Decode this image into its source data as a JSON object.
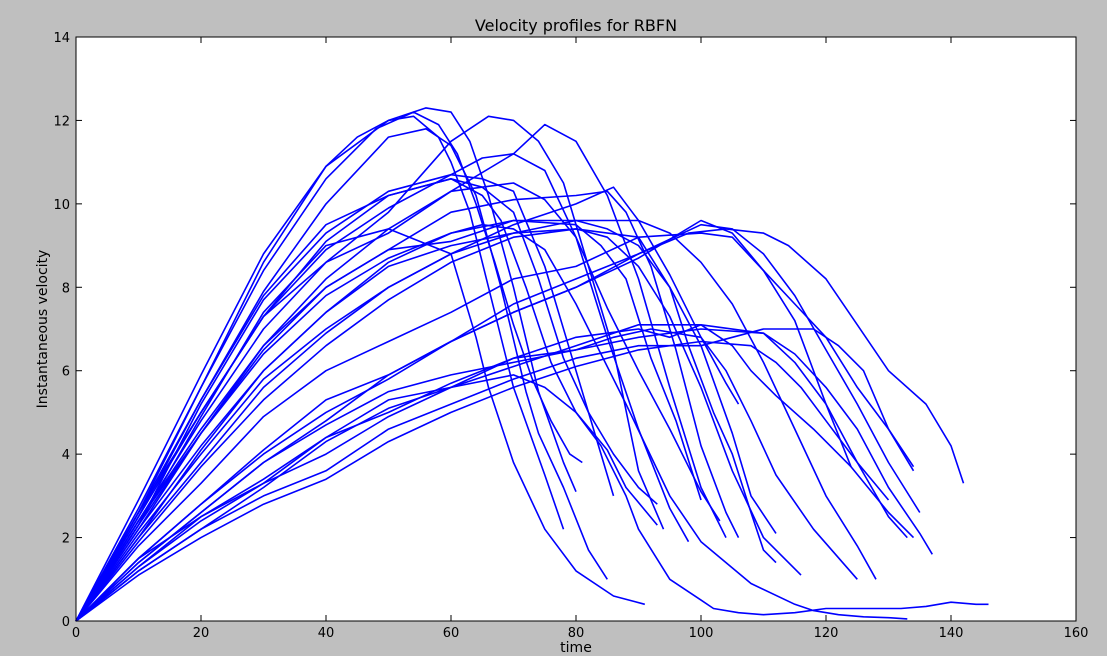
{
  "chart_data": {
    "type": "line",
    "title": "Velocity profiles for RBFN",
    "xlabel": "time",
    "ylabel": "Instantaneous velocity",
    "xlim": [
      0,
      160
    ],
    "ylim": [
      0,
      14
    ],
    "xticks": [
      0,
      20,
      40,
      60,
      80,
      100,
      120,
      140,
      160
    ],
    "yticks": [
      0,
      2,
      4,
      6,
      8,
      10,
      12,
      14
    ],
    "grid": false,
    "legend": "none",
    "line_color": "#0000ff",
    "series": [
      {
        "x": [
          0,
          10,
          20,
          30,
          40,
          45,
          50,
          54,
          58,
          60,
          63,
          66,
          70,
          75,
          78
        ],
        "y": [
          0,
          2.6,
          5.6,
          8.6,
          10.9,
          11.6,
          12.0,
          12.1,
          11.6,
          11.0,
          9.8,
          8.0,
          5.6,
          3.5,
          2.2
        ]
      },
      {
        "x": [
          0,
          10,
          20,
          30,
          40,
          50,
          56,
          60,
          63,
          66,
          70,
          74,
          78,
          80
        ],
        "y": [
          0,
          2.9,
          5.9,
          8.8,
          10.9,
          12.0,
          12.3,
          12.2,
          11.5,
          10.2,
          8.0,
          5.5,
          3.8,
          3.1
        ]
      },
      {
        "x": [
          0,
          10,
          20,
          30,
          40,
          48,
          54,
          58,
          61,
          64,
          67,
          70,
          73,
          76,
          79,
          81
        ],
        "y": [
          0,
          2.7,
          5.6,
          8.4,
          10.6,
          11.8,
          12.2,
          11.9,
          11.2,
          10.0,
          8.6,
          7.1,
          5.8,
          4.8,
          4.0,
          3.8
        ]
      },
      {
        "x": [
          0,
          10,
          20,
          30,
          40,
          50,
          56,
          60,
          64,
          68,
          72,
          74,
          78,
          82,
          85
        ],
        "y": [
          0,
          2.5,
          5.3,
          7.9,
          10.0,
          11.6,
          11.8,
          11.4,
          10.2,
          8.0,
          5.5,
          4.5,
          3.2,
          1.7,
          1.0
        ]
      },
      {
        "x": [
          0,
          10,
          20,
          30,
          40,
          50,
          60,
          64,
          66,
          70,
          75,
          80,
          86,
          91
        ],
        "y": [
          0,
          2.3,
          4.9,
          7.4,
          9.0,
          9.4,
          8.8,
          6.8,
          5.6,
          3.8,
          2.2,
          1.2,
          0.6,
          0.4
        ]
      },
      {
        "x": [
          0,
          10,
          20,
          30,
          40,
          50,
          60,
          65,
          68,
          72,
          76,
          80,
          85,
          88,
          93
        ],
        "y": [
          0,
          2.5,
          5.0,
          7.3,
          9.1,
          10.2,
          10.6,
          10.2,
          9.6,
          8.0,
          6.2,
          5.0,
          4.1,
          3.2,
          2.3
        ]
      },
      {
        "x": [
          0,
          10,
          20,
          30,
          40,
          50,
          60,
          65,
          70,
          74,
          78,
          82,
          86,
          90,
          93
        ],
        "y": [
          0,
          2.6,
          5.3,
          7.8,
          9.5,
          10.2,
          10.6,
          10.4,
          9.8,
          8.2,
          6.3,
          5.0,
          4.0,
          3.2,
          2.8
        ]
      },
      {
        "x": [
          0,
          10,
          20,
          30,
          40,
          50,
          60,
          65,
          70,
          75,
          80,
          84,
          86
        ],
        "y": [
          0,
          2.3,
          5.2,
          7.7,
          9.3,
          10.3,
          10.7,
          10.6,
          10.3,
          8.5,
          6.0,
          4.0,
          3.0
        ]
      },
      {
        "x": [
          0,
          10,
          20,
          30,
          40,
          50,
          60,
          65,
          70,
          75,
          80,
          85,
          90,
          95,
          98
        ],
        "y": [
          0,
          2.6,
          5.0,
          7.3,
          8.9,
          9.9,
          10.7,
          11.1,
          11.2,
          10.8,
          9.2,
          6.8,
          4.6,
          2.7,
          1.9
        ]
      },
      {
        "x": [
          0,
          10,
          20,
          30,
          40,
          50,
          60,
          66,
          70,
          74,
          78,
          82,
          86,
          90,
          94
        ],
        "y": [
          0,
          2.4,
          4.8,
          7.0,
          8.6,
          9.8,
          11.5,
          12.1,
          12.0,
          11.5,
          10.5,
          8.5,
          6.5,
          3.6,
          2.2
        ]
      },
      {
        "x": [
          0,
          10,
          20,
          30,
          40,
          50,
          60,
          70,
          75,
          80,
          85,
          90,
          95,
          100,
          103
        ],
        "y": [
          0,
          2.2,
          4.5,
          6.6,
          8.2,
          9.4,
          10.3,
          10.5,
          10.1,
          9.2,
          7.5,
          6.0,
          4.6,
          3.1,
          2.4
        ]
      },
      {
        "x": [
          0,
          10,
          20,
          30,
          40,
          50,
          60,
          70,
          80,
          85,
          88,
          92,
          96,
          100,
          104,
          106
        ],
        "y": [
          0,
          2.4,
          4.6,
          6.6,
          8.0,
          8.9,
          9.8,
          10.1,
          10.2,
          10.3,
          9.8,
          8.5,
          6.5,
          4.2,
          2.6,
          2.0
        ]
      },
      {
        "x": [
          0,
          10,
          20,
          30,
          40,
          50,
          60,
          70,
          75,
          80,
          85,
          90,
          95,
          100,
          104
        ],
        "y": [
          0,
          2.6,
          5.0,
          7.3,
          8.6,
          9.3,
          10.3,
          11.2,
          11.9,
          11.5,
          10.2,
          8.2,
          5.6,
          3.2,
          2.0
        ]
      },
      {
        "x": [
          0,
          10,
          20,
          30,
          40,
          50,
          60,
          70,
          80,
          84,
          88,
          92,
          96,
          100
        ],
        "y": [
          0,
          2.4,
          4.5,
          6.5,
          8.0,
          8.9,
          9.1,
          9.6,
          9.5,
          9.0,
          8.2,
          6.3,
          4.8,
          2.9
        ]
      },
      {
        "x": [
          0,
          10,
          20,
          30,
          40,
          50,
          60,
          70,
          80,
          85,
          90,
          95,
          100,
          105,
          108,
          112
        ],
        "y": [
          0,
          2.3,
          4.5,
          6.4,
          7.8,
          8.7,
          9.3,
          9.6,
          9.6,
          9.4,
          9.0,
          8.0,
          6.6,
          4.5,
          3.0,
          2.1
        ]
      },
      {
        "x": [
          0,
          10,
          20,
          30,
          40,
          50,
          60,
          65,
          70,
          75,
          80,
          88,
          95,
          100,
          108,
          115,
          118,
          122,
          126,
          130,
          133
        ],
        "y": [
          0,
          2.2,
          4.2,
          6.0,
          7.4,
          8.6,
          9.3,
          9.5,
          9.4,
          8.9,
          7.6,
          5.2,
          3.0,
          1.9,
          0.9,
          0.4,
          0.25,
          0.15,
          0.1,
          0.08,
          0.05
        ]
      },
      {
        "x": [
          0,
          10,
          20,
          30,
          40,
          50,
          60,
          70,
          80,
          85,
          90,
          95,
          100,
          105,
          110,
          116
        ],
        "y": [
          0,
          2.0,
          4.1,
          6.0,
          7.4,
          8.5,
          9.0,
          9.3,
          9.4,
          9.2,
          8.5,
          7.3,
          5.6,
          3.6,
          2.0,
          1.1
        ]
      },
      {
        "x": [
          0,
          10,
          20,
          30,
          40,
          50,
          60,
          70,
          80,
          90,
          95,
          98,
          102,
          105,
          108,
          110,
          112
        ],
        "y": [
          0,
          1.9,
          3.7,
          5.3,
          6.6,
          7.7,
          8.6,
          9.2,
          9.4,
          9.2,
          8.0,
          6.6,
          5.0,
          4.0,
          2.6,
          1.7,
          1.4
        ]
      },
      {
        "x": [
          0,
          10,
          20,
          30,
          40,
          50,
          60,
          70,
          80,
          86,
          90,
          95,
          100,
          104,
          106
        ],
        "y": [
          0,
          2.0,
          3.8,
          5.6,
          6.9,
          8.0,
          8.8,
          9.5,
          10.0,
          10.4,
          9.6,
          8.3,
          6.8,
          5.7,
          5.2
        ]
      },
      {
        "x": [
          0,
          10,
          20,
          30,
          40,
          50,
          60,
          70,
          80,
          90,
          95,
          100,
          105,
          110,
          115,
          120,
          125,
          128
        ],
        "y": [
          0,
          2.1,
          4.0,
          5.8,
          7.0,
          8.0,
          8.8,
          9.3,
          9.6,
          9.6,
          9.3,
          8.6,
          7.6,
          6.2,
          4.6,
          3.0,
          1.8,
          1.0
        ]
      },
      {
        "x": [
          0,
          10,
          20,
          30,
          40,
          50,
          60,
          70,
          80,
          90,
          100,
          105,
          110,
          115,
          120,
          125,
          130,
          134
        ],
        "y": [
          0,
          1.8,
          3.3,
          4.9,
          6.0,
          6.7,
          7.4,
          8.2,
          8.5,
          9.2,
          9.3,
          9.2,
          8.4,
          7.6,
          6.8,
          5.6,
          4.6,
          3.7
        ]
      },
      {
        "x": [
          0,
          10,
          20,
          30,
          40,
          50,
          60,
          70,
          80,
          90,
          100,
          105,
          110,
          115,
          120,
          125,
          130,
          135
        ],
        "y": [
          0,
          1.4,
          2.6,
          3.8,
          4.8,
          5.9,
          6.7,
          7.4,
          8.0,
          8.8,
          9.5,
          9.4,
          8.8,
          7.8,
          6.5,
          5.2,
          3.8,
          2.6
        ]
      },
      {
        "x": [
          0,
          10,
          20,
          30,
          40,
          50,
          60,
          70,
          80,
          90,
          98,
          104,
          110,
          114,
          120,
          125,
          130,
          136,
          140,
          142
        ],
        "y": [
          0,
          1.5,
          2.8,
          4.0,
          5.0,
          5.8,
          6.7,
          7.6,
          8.2,
          8.8,
          9.3,
          9.4,
          9.3,
          9.0,
          8.2,
          7.1,
          6.0,
          5.2,
          4.2,
          3.3
        ]
      },
      {
        "x": [
          0,
          10,
          20,
          30,
          40,
          50,
          60,
          70,
          80,
          90,
          100,
          105,
          110,
          115,
          120,
          124
        ],
        "y": [
          0,
          1.5,
          2.8,
          4.1,
          5.3,
          5.9,
          6.7,
          7.4,
          8.0,
          8.7,
          9.6,
          9.3,
          8.4,
          7.2,
          5.2,
          3.7
        ]
      },
      {
        "x": [
          0,
          10,
          20,
          30,
          40,
          50,
          60,
          70,
          75,
          80,
          84,
          88,
          90,
          95,
          100,
          102,
          106,
          110,
          115,
          120,
          126,
          132,
          136,
          140,
          144,
          146
        ],
        "y": [
          0,
          1.5,
          2.5,
          3.3,
          4.4,
          5.3,
          5.6,
          5.9,
          5.6,
          5.0,
          4.2,
          3.0,
          2.2,
          1.0,
          0.5,
          0.3,
          0.2,
          0.15,
          0.2,
          0.3,
          0.3,
          0.3,
          0.35,
          0.45,
          0.4,
          0.4
        ]
      },
      {
        "x": [
          0,
          10,
          20,
          30,
          40,
          50,
          60,
          70,
          80,
          86,
          92,
          100,
          104,
          108,
          112,
          118,
          125
        ],
        "y": [
          0,
          1.4,
          2.6,
          3.8,
          4.7,
          5.5,
          5.9,
          6.2,
          6.5,
          6.8,
          7.0,
          6.8,
          6.0,
          4.8,
          3.5,
          2.2,
          1.0
        ]
      },
      {
        "x": [
          0,
          10,
          20,
          30,
          40,
          50,
          60,
          70,
          80,
          90,
          95,
          100,
          110,
          115,
          120,
          125,
          130,
          135,
          137
        ],
        "y": [
          0,
          1.3,
          2.5,
          3.4,
          4.4,
          5.0,
          5.7,
          6.3,
          6.8,
          7.0,
          6.8,
          7.1,
          6.9,
          6.4,
          5.6,
          4.6,
          3.2,
          2.1,
          1.6
        ]
      },
      {
        "x": [
          0,
          10,
          20,
          30,
          40,
          50,
          60,
          70,
          80,
          90,
          100,
          110,
          115,
          120,
          125,
          130,
          133
        ],
        "y": [
          0,
          1.3,
          2.4,
          3.3,
          4.0,
          4.9,
          5.6,
          6.3,
          6.5,
          6.8,
          7.0,
          6.9,
          6.2,
          5.2,
          3.8,
          2.5,
          2.0
        ]
      },
      {
        "x": [
          0,
          10,
          20,
          30,
          40,
          50,
          60,
          70,
          80,
          90,
          100,
          110,
          118,
          122,
          126,
          130,
          134
        ],
        "y": [
          0,
          1.2,
          2.2,
          3.0,
          3.6,
          4.6,
          5.2,
          5.8,
          6.3,
          6.6,
          6.6,
          7.0,
          7.0,
          6.6,
          6.0,
          4.6,
          3.6
        ]
      },
      {
        "x": [
          0,
          10,
          20,
          30,
          40,
          50,
          60,
          70,
          80,
          90,
          100,
          108,
          112,
          116,
          120,
          125,
          130
        ],
        "y": [
          0,
          1.1,
          2.0,
          2.8,
          3.4,
          4.3,
          5.0,
          5.6,
          6.1,
          6.5,
          6.7,
          6.6,
          6.2,
          5.6,
          4.8,
          3.8,
          2.9
        ]
      },
      {
        "x": [
          0,
          10,
          20,
          30,
          40,
          50,
          60,
          70,
          80,
          90,
          100,
          105,
          108,
          112,
          118,
          124,
          130,
          134
        ],
        "y": [
          0,
          1.2,
          2.2,
          3.2,
          4.3,
          5.1,
          5.6,
          6.1,
          6.6,
          7.1,
          7.1,
          6.6,
          6.0,
          5.4,
          4.6,
          3.7,
          2.6,
          2.0
        ]
      }
    ]
  }
}
